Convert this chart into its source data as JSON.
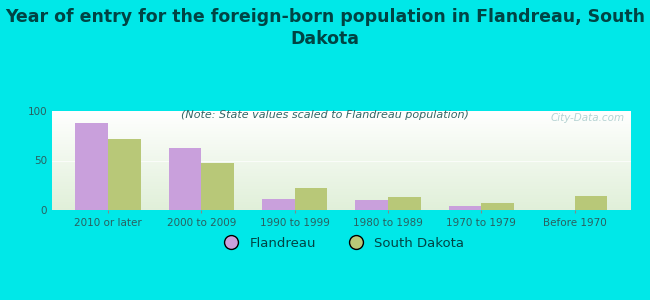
{
  "categories": [
    "2010 or later",
    "2000 to 2009",
    "1990 to 1999",
    "1980 to 1989",
    "1970 to 1979",
    "Before 1970"
  ],
  "flandreau_values": [
    88,
    63,
    11,
    10,
    4,
    0
  ],
  "sd_values": [
    72,
    47,
    22,
    13,
    7,
    14
  ],
  "flandreau_color": "#c9a0dc",
  "sd_color": "#b8c878",
  "title": "Year of entry for the foreign-born population in Flandreau, South\nDakota",
  "subtitle": "(Note: State values scaled to Flandreau population)",
  "ylim": [
    0,
    100
  ],
  "yticks": [
    0,
    50,
    100
  ],
  "background_color": "#00e8e8",
  "bar_width": 0.35,
  "flandreau_label": "Flandreau",
  "sd_label": "South Dakota",
  "title_fontsize": 12.5,
  "subtitle_fontsize": 8,
  "tick_fontsize": 7.5,
  "legend_fontsize": 9.5,
  "watermark": "City-Data.com"
}
